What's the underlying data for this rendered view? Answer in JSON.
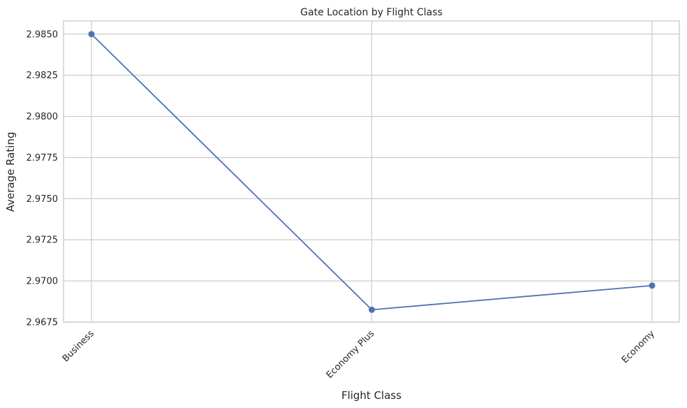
{
  "chart_data": {
    "type": "line",
    "title": "Gate Location by Flight Class",
    "xlabel": "Flight Class",
    "ylabel": "Average Rating",
    "categories": [
      "Business",
      "Economy Plus",
      "Economy"
    ],
    "series": [
      {
        "values": [
          2.985,
          2.96825,
          2.96972
        ],
        "color": "#4c72b0"
      }
    ],
    "ylim": [
      2.9675,
      2.9858
    ],
    "yticks": [
      {
        "value": 2.9675,
        "label": "2.9675"
      },
      {
        "value": 2.97,
        "label": "2.9700"
      },
      {
        "value": 2.9725,
        "label": "2.9725"
      },
      {
        "value": 2.975,
        "label": "2.9750"
      },
      {
        "value": 2.9775,
        "label": "2.9775"
      },
      {
        "value": 2.98,
        "label": "2.9800"
      },
      {
        "value": 2.9825,
        "label": "2.9825"
      },
      {
        "value": 2.985,
        "label": "2.9850"
      }
    ],
    "grid": true,
    "marker": "circle"
  }
}
